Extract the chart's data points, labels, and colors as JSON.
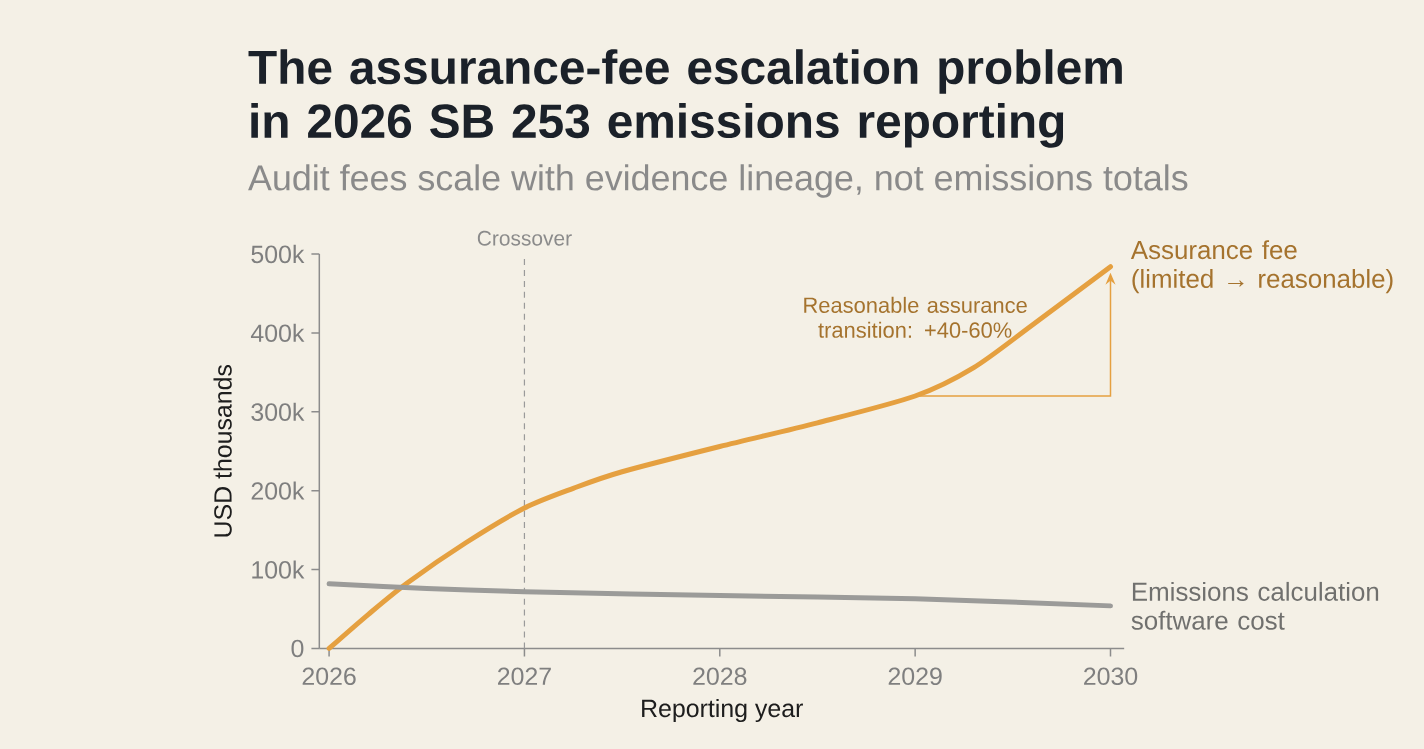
{
  "chart_data": {
    "type": "line",
    "title": "The assurance-fee escalation problem\nin 2026 SB 253 emissions reporting",
    "subtitle": "Audit fees scale with evidence lineage, not emissions totals",
    "xlabel": "Reporting year",
    "ylabel": "USD thousands",
    "series": [
      {
        "name": "Assurance fee\n(limited → reasonable)",
        "color": "#e5a040",
        "x": [
          2026,
          2026.2,
          2026.4,
          2026.7,
          2027,
          2027.25,
          2027.5,
          2028,
          2028.5,
          2029,
          2029.3,
          2029.6,
          2030
        ],
        "values": [
          0,
          43,
          83,
          134,
          178,
          203,
          224,
          256,
          286,
          320,
          356,
          410,
          484
        ]
      },
      {
        "name": "Emissions calculation\nsoftware cost",
        "color": "#9b9b99",
        "x": [
          2026,
          2026.5,
          2027,
          2028,
          2029,
          2030
        ],
        "values": [
          82,
          76,
          72,
          67,
          63,
          54
        ]
      }
    ],
    "xlim": [
      2025.95,
      2030.07
    ],
    "xticks": [
      2026,
      2027,
      2028,
      2029,
      2030
    ],
    "ylim": [
      0,
      500
    ],
    "yticks": [
      0,
      {
        "value": 100,
        "label": "100k"
      },
      {
        "value": 200,
        "label": "200k"
      },
      {
        "value": 300,
        "label": "300k"
      },
      {
        "value": 400,
        "label": "400k"
      },
      {
        "value": 500,
        "label": "500k"
      }
    ],
    "ref_lines": [
      {
        "axis": "x",
        "value": 2027,
        "label": "Crossover",
        "color": "#9a9a9a",
        "line_style": "dashed"
      }
    ],
    "annotations": [
      {
        "text": "Reasonable assurance\ntransition: +40-60%",
        "x": 2029,
        "y": 320
      }
    ],
    "marker": "none"
  }
}
